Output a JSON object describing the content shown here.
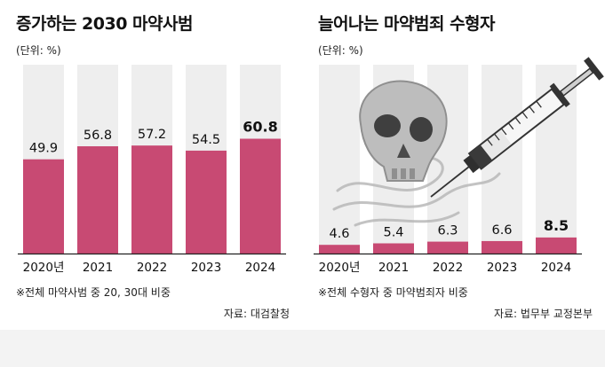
{
  "chart_data": [
    {
      "type": "bar",
      "title": "증가하는 2030 마약사범",
      "unit_label": "(단위: %)",
      "categories": [
        "2020년",
        "2021",
        "2022",
        "2023",
        "2024"
      ],
      "values": [
        49.9,
        56.8,
        57.2,
        54.5,
        60.8
      ],
      "value_labels": [
        "49.9",
        "56.8",
        "57.2",
        "54.5",
        "60.8"
      ],
      "ylim": [
        0,
        100
      ],
      "note": "※전체 마약사범 중 20, 30대 비중",
      "source": "자료: 대검찰청",
      "bar_color": "#c84a73",
      "background_column_color": "#eeeeee",
      "grid": false
    },
    {
      "type": "bar",
      "title": "늘어나는 마약범죄 수형자",
      "unit_label": "(단위: %)",
      "categories": [
        "2020년",
        "2021",
        "2022",
        "2023",
        "2024"
      ],
      "values": [
        4.6,
        5.4,
        6.3,
        6.6,
        8.5
      ],
      "value_labels": [
        "4.6",
        "5.4",
        "6.3",
        "6.6",
        "8.5"
      ],
      "ylim": [
        0,
        100
      ],
      "note": "※전체 수형자 중 마약범죄자 비중",
      "source": "자료: 법무부 교정본부",
      "bar_color": "#c84a73",
      "background_column_color": "#eeeeee",
      "grid": false,
      "illustration": [
        "skull-icon",
        "syringe-icon",
        "smoke-icon"
      ]
    }
  ]
}
